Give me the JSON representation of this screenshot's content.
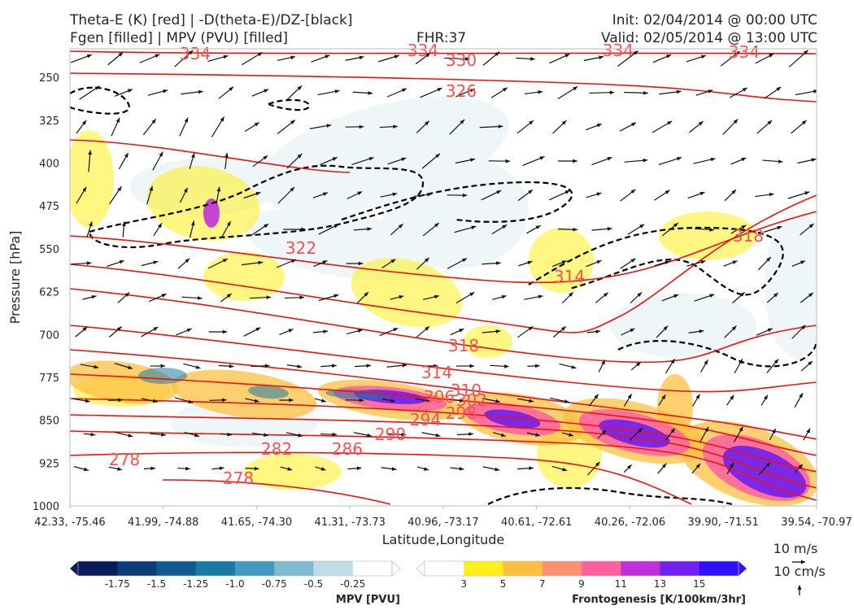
{
  "header": {
    "title_line1": "Theta-E (K) [red] | -D(theta-E)/DZ-[black]",
    "title_line2": "Fgen [filled] | MPV (PVU) [filled]",
    "fhr": "FHR:37",
    "init": "Init: 02/04/2014 @ 00:00 UTC",
    "valid": "Valid: 02/05/2014 @ 13:00 UTC"
  },
  "chart_data": {
    "type": "cross-section",
    "xlabel": "Latitude,Longitude",
    "ylabel": "Pressure [hPa]",
    "x_ticks": [
      "42.33, -75.46",
      "41.99, -74.88",
      "41.65, -74.30",
      "41.31, -73.73",
      "40.96, -73.17",
      "40.61, -72.61",
      "40.26, -72.06",
      "39.90, -71.51",
      "39.54, -70.97"
    ],
    "y_ticks": [
      250,
      325,
      400,
      475,
      550,
      625,
      700,
      775,
      850,
      925,
      1000
    ],
    "ylim": [
      1000,
      200
    ],
    "y_inverted": true,
    "theta_e_contours": [
      {
        "value": 334,
        "label": "334"
      },
      {
        "value": 330,
        "label": "330"
      },
      {
        "value": 326,
        "label": "326"
      },
      {
        "value": 322,
        "label": "322"
      },
      {
        "value": 318,
        "label": "318"
      },
      {
        "value": 314,
        "label": "314"
      },
      {
        "value": 310,
        "label": "310"
      },
      {
        "value": 306,
        "label": "306"
      },
      {
        "value": 302,
        "label": "302"
      },
      {
        "value": 298,
        "label": "298"
      },
      {
        "value": 294,
        "label": "294"
      },
      {
        "value": 290,
        "label": "290"
      },
      {
        "value": 286,
        "label": "286"
      },
      {
        "value": 282,
        "label": "282"
      },
      {
        "value": 278,
        "label": "278"
      }
    ],
    "mpv_colorbar": {
      "label": "MPV [PVU]",
      "ticks": [
        "-1.75",
        "-1.5",
        "-1.25",
        "-1.0",
        "-0.75",
        "-0.5",
        "-0.25"
      ],
      "colors": [
        "#081d58",
        "#0b3d78",
        "#0f5a8e",
        "#1a7aa6",
        "#3f9bbf",
        "#7dbcd1",
        "#bedde6",
        "#ffffff"
      ]
    },
    "fgen_colorbar": {
      "label": "Frontogenesis [K/100km/3hr]",
      "ticks": [
        "3",
        "5",
        "7",
        "9",
        "11",
        "13",
        "15"
      ],
      "colors": [
        "#ffffff",
        "#fff01a",
        "#ffc040",
        "#ff9070",
        "#ff60a0",
        "#c030d8",
        "#7020f0",
        "#3010ff"
      ]
    },
    "vector_key": {
      "horizontal": "10 m/s",
      "vertical": "10 cm/s"
    }
  }
}
